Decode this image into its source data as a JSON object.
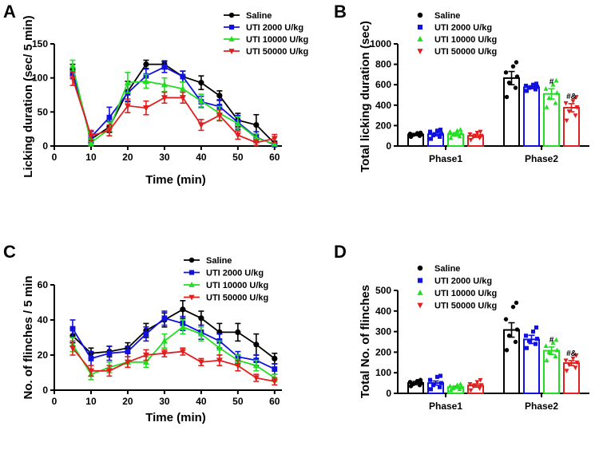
{
  "panels": [
    {
      "letter": "A",
      "chart_data": {
        "type": "line",
        "xlabel": "Time (min)",
        "ylabel": "Licking duration (sec/ 5 min)",
        "xlim": [
          0,
          62
        ],
        "ylim": [
          0,
          150
        ],
        "xticks": [
          0,
          10,
          20,
          30,
          40,
          50,
          60
        ],
        "yticks": [
          0,
          50,
          100,
          150
        ],
        "legend": "top-right",
        "x": [
          5,
          10,
          15,
          20,
          25,
          30,
          35,
          40,
          45,
          50,
          55,
          60
        ],
        "series": [
          {
            "name": "Saline",
            "color": "#000000",
            "marker": "circle",
            "values": [
              112,
              10,
              28,
              80,
              120,
              120,
              102,
              93,
              74,
              38,
              31,
              4
            ],
            "errors": [
              8,
              6,
              8,
              15,
              6,
              5,
              8,
              10,
              7,
              10,
              15,
              3
            ]
          },
          {
            "name": "UTI 2000 U/kg",
            "color": "#1010e0",
            "marker": "square",
            "values": [
              107,
              13,
              42,
              78,
              103,
              116,
              102,
              65,
              58,
              35,
              13,
              2
            ],
            "errors": [
              8,
              8,
              15,
              12,
              10,
              8,
              8,
              8,
              10,
              10,
              8,
              2
            ]
          },
          {
            "name": "UTI 10000 U/kg",
            "color": "#22dd22",
            "marker": "triangle-up",
            "values": [
              118,
              5,
              25,
              93,
              95,
              90,
              84,
              66,
              48,
              33,
              12,
              3
            ],
            "errors": [
              8,
              5,
              10,
              15,
              10,
              10,
              10,
              10,
              10,
              10,
              6,
              2
            ]
          },
          {
            "name": "UTI 50000 U/kg",
            "color": "#e02020",
            "marker": "triangle-down",
            "values": [
              99,
              15,
              23,
              59,
              56,
              71,
              71,
              31,
              45,
              16,
              5,
              11
            ],
            "errors": [
              10,
              8,
              8,
              10,
              10,
              8,
              8,
              8,
              8,
              6,
              4,
              6
            ]
          }
        ]
      }
    },
    {
      "letter": "B",
      "chart_data": {
        "type": "bar",
        "ylabel": "Total licking duration (sec)",
        "ylim": [
          0,
          1000
        ],
        "yticks": [
          0,
          200,
          400,
          600,
          800,
          1000
        ],
        "legend": "top-left",
        "categories": [
          "Phase1",
          "Phase2"
        ],
        "series": [
          {
            "name": "Saline",
            "color": "#000000",
            "marker": "circle",
            "values": [
              112,
              665
            ],
            "errors": [
              10,
              65
            ],
            "points": [
              [
                90,
                100,
                110,
                115,
                120,
                125,
                130
              ],
              [
                480,
                570,
                620,
                680,
                720,
                780,
                820
              ]
            ],
            "annotations": [
              "",
              ""
            ]
          },
          {
            "name": "UTI 2000 U/kg",
            "color": "#1010e0",
            "marker": "square",
            "values": [
              115,
              575
            ],
            "errors": [
              15,
              15
            ],
            "points": [
              [
                70,
                90,
                105,
                120,
                140,
                150,
                160
              ],
              [
                540,
                555,
                570,
                580,
                590,
                600,
                610
              ]
            ],
            "annotations": [
              "",
              ""
            ]
          },
          {
            "name": "UTI 10000 U/kg",
            "color": "#22dd22",
            "marker": "triangle-up",
            "values": [
              115,
              510
            ],
            "errors": [
              15,
              50
            ],
            "points": [
              [
                80,
                95,
                110,
                125,
                140,
                150,
                160
              ],
              [
                380,
                420,
                470,
                520,
                560,
                600,
                640
              ]
            ],
            "annotations": [
              "",
              "#"
            ]
          },
          {
            "name": "UTI 50000 U/kg",
            "color": "#e02020",
            "marker": "triangle-down",
            "values": [
              100,
              375
            ],
            "errors": [
              15,
              40
            ],
            "points": [
              [
                60,
                80,
                90,
                100,
                115,
                130,
                140
              ],
              [
                250,
                300,
                340,
                380,
                420,
                440,
                480
              ]
            ],
            "annotations": [
              "",
              "#&"
            ]
          }
        ]
      }
    },
    {
      "letter": "C",
      "chart_data": {
        "type": "line",
        "xlabel": "Time (min)",
        "ylabel": "No. of flinches / 5 min",
        "xlim": [
          0,
          62
        ],
        "ylim": [
          0,
          60
        ],
        "xticks": [
          0,
          10,
          20,
          30,
          40,
          50,
          60
        ],
        "yticks": [
          0,
          20,
          40,
          60
        ],
        "legend": "top-right",
        "x": [
          5,
          10,
          15,
          20,
          25,
          30,
          35,
          40,
          45,
          50,
          55,
          60
        ],
        "series": [
          {
            "name": "Saline",
            "color": "#000000",
            "marker": "circle",
            "values": [
              31,
              21,
              22,
              24,
              34,
              40,
              46,
              41,
              33,
              33,
              26,
              18
            ],
            "errors": [
              4,
              3,
              3,
              3,
              4,
              4,
              5,
              4,
              5,
              5,
              6,
              3
            ]
          },
          {
            "name": "UTI 2000 U/kg",
            "color": "#1010e0",
            "marker": "square",
            "values": [
              35,
              18,
              21,
              22,
              32,
              41,
              38,
              33,
              28,
              19,
              17,
              12
            ],
            "errors": [
              5,
              4,
              4,
              3,
              4,
              4,
              4,
              4,
              4,
              3,
              3,
              3
            ]
          },
          {
            "name": "UTI 10000 U/kg",
            "color": "#22dd22",
            "marker": "triangle-up",
            "values": [
              26,
              9,
              13,
              16,
              16,
              28,
              36,
              32,
              24,
              17,
              14,
              7
            ],
            "errors": [
              4,
              3,
              3,
              3,
              3,
              4,
              4,
              4,
              4,
              3,
              3,
              2
            ]
          },
          {
            "name": "UTI 50000 U/kg",
            "color": "#e02020",
            "marker": "triangle-down",
            "values": [
              24,
              11,
              11,
              16,
              20,
              21,
              22,
              16,
              17,
              14,
              7,
              5
            ],
            "errors": [
              4,
              3,
              3,
              3,
              3,
              2,
              2,
              2,
              3,
              3,
              2,
              2
            ]
          }
        ]
      }
    },
    {
      "letter": "D",
      "chart_data": {
        "type": "bar",
        "ylabel": "Total No. of flinches",
        "ylim": [
          0,
          500
        ],
        "yticks": [
          0,
          100,
          200,
          300,
          400,
          500
        ],
        "legend": "top-left",
        "categories": [
          "Phase1",
          "Phase2"
        ],
        "series": [
          {
            "name": "Saline",
            "color": "#000000",
            "marker": "circle",
            "values": [
              50,
              308
            ],
            "errors": [
              8,
              35
            ],
            "points": [
              [
                35,
                40,
                45,
                50,
                55,
                60,
                65
              ],
              [
                210,
                250,
                280,
                310,
                360,
                420,
                440
              ]
            ],
            "annotations": [
              "",
              ""
            ]
          },
          {
            "name": "UTI 2000 U/kg",
            "color": "#1010e0",
            "marker": "square",
            "values": [
              50,
              262
            ],
            "errors": [
              10,
              20
            ],
            "points": [
              [
                20,
                30,
                40,
                50,
                65,
                80,
                85
              ],
              [
                220,
                240,
                255,
                265,
                280,
                300,
                320
              ]
            ],
            "annotations": [
              "",
              ""
            ]
          },
          {
            "name": "UTI 10000 U/kg",
            "color": "#22dd22",
            "marker": "triangle-up",
            "values": [
              30,
              207
            ],
            "errors": [
              6,
              18
            ],
            "points": [
              [
                15,
                20,
                25,
                30,
                35,
                40,
                45
              ],
              [
                160,
                180,
                200,
                210,
                230,
                245,
                260
              ]
            ],
            "annotations": [
              "",
              "#"
            ]
          },
          {
            "name": "UTI 50000 U/kg",
            "color": "#e02020",
            "marker": "triangle-down",
            "values": [
              38,
              147
            ],
            "errors": [
              8,
              12
            ],
            "points": [
              [
                15,
                25,
                35,
                40,
                45,
                55,
                65
              ],
              [
                110,
                125,
                140,
                150,
                160,
                170,
                185
              ]
            ],
            "annotations": [
              "",
              "#&"
            ]
          }
        ]
      }
    }
  ]
}
